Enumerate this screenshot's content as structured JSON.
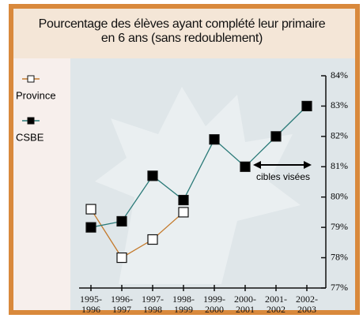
{
  "chart_data": {
    "type": "line",
    "title": "Pourcentage des élèves ayant complété leur primaire en 6 ans (sans redoublement)",
    "categories": [
      "1995-1996",
      "1996-1997",
      "1997-1998",
      "1998-1999",
      "1999-2000",
      "2000-2001",
      "2001-2002",
      "2002-2003"
    ],
    "series": [
      {
        "name": "Province",
        "color": "#c47a2c",
        "values": [
          79.6,
          78.0,
          78.6,
          79.5,
          null,
          null,
          null,
          null
        ]
      },
      {
        "name": "CSBE",
        "color": "#2a7a78",
        "values": [
          79.0,
          79.2,
          80.7,
          79.9,
          81.9,
          81.0,
          82.0,
          83.0
        ]
      }
    ],
    "ylim": [
      77,
      84
    ],
    "yticks": [
      {
        "value": 77,
        "label": "77%"
      },
      {
        "value": 78,
        "label": "78%"
      },
      {
        "value": 79,
        "label": "79%"
      },
      {
        "value": 80,
        "label": "80%"
      },
      {
        "value": 81,
        "label": "81%"
      },
      {
        "value": 82,
        "label": "82%"
      },
      {
        "value": 83,
        "label": "83%"
      },
      {
        "value": 84,
        "label": "84%"
      }
    ],
    "annotation": "cibles visées"
  }
}
